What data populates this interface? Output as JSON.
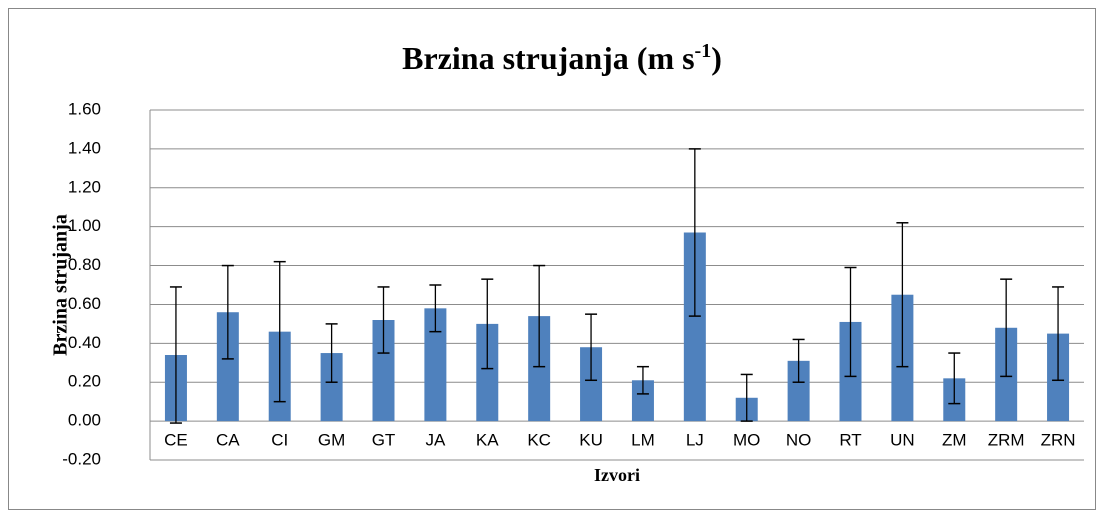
{
  "chart_data": {
    "type": "bar",
    "title": "Brzina strujanja (m s",
    "title_superscript": "-1",
    "title_suffix": ")",
    "x_label": "Izvori",
    "y_label": "Brzina strujanja",
    "categories": [
      "CE",
      "CA",
      "CI",
      "GM",
      "GT",
      "JA",
      "KA",
      "KC",
      "KU",
      "LM",
      "LJ",
      "MO",
      "NO",
      "RT",
      "UN",
      "ZM",
      "ZRM",
      "ZRN"
    ],
    "values": [
      0.34,
      0.56,
      0.46,
      0.35,
      0.52,
      0.58,
      0.5,
      0.54,
      0.38,
      0.21,
      0.97,
      0.12,
      0.31,
      0.51,
      0.65,
      0.22,
      0.48,
      0.45
    ],
    "errors": [
      0.35,
      0.24,
      0.36,
      0.15,
      0.17,
      0.12,
      0.23,
      0.26,
      0.17,
      0.07,
      0.43,
      0.12,
      0.11,
      0.28,
      0.37,
      0.13,
      0.25,
      0.24
    ],
    "color": "#4f81bd",
    "ylim": [
      -0.2,
      1.6
    ],
    "yticks": [
      {
        "value": -0.2,
        "label": "-0.20"
      },
      {
        "value": 0,
        "label": "0.00"
      },
      {
        "value": 0.2,
        "label": "0.20"
      },
      {
        "value": 0.4,
        "label": "0.40"
      },
      {
        "value": 0.6,
        "label": "0.60"
      },
      {
        "value": 0.8,
        "label": "0.80"
      },
      {
        "value": 1.0,
        "label": "1.00"
      },
      {
        "value": 1.2,
        "label": "1.20"
      },
      {
        "value": 1.4,
        "label": "1.40"
      },
      {
        "value": 1.6,
        "label": "1.60"
      }
    ],
    "grid": true
  }
}
